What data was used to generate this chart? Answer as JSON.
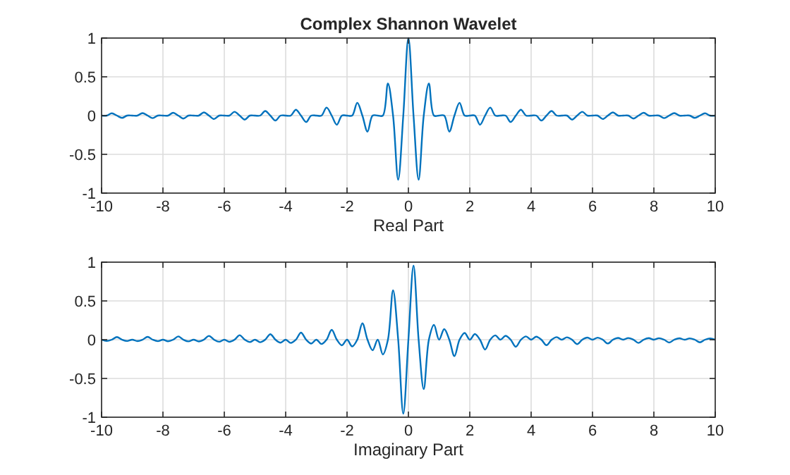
{
  "chart_data": [
    {
      "type": "line",
      "title": "Complex Shannon Wavelet",
      "xlabel": "Real Part",
      "xlim": [
        -10,
        10
      ],
      "ylim": [
        -1,
        1
      ],
      "xticks": [
        -10,
        -8,
        -6,
        -4,
        -2,
        0,
        2,
        4,
        6,
        8,
        10
      ],
      "yticks": [
        -1,
        -0.5,
        0,
        0.5,
        1
      ],
      "grid": true,
      "x": [
        -10,
        -9.833,
        -9.667,
        -9.5,
        -9.333,
        -9.167,
        -9,
        -8.833,
        -8.667,
        -8.5,
        -8.333,
        -8.167,
        -8,
        -7.833,
        -7.667,
        -7.5,
        -7.333,
        -7.167,
        -7,
        -6.833,
        -6.667,
        -6.5,
        -6.333,
        -6.167,
        -6,
        -5.833,
        -5.667,
        -5.5,
        -5.333,
        -5.167,
        -5,
        -4.833,
        -4.667,
        -4.5,
        -4.333,
        -4.167,
        -4,
        -3.833,
        -3.667,
        -3.5,
        -3.333,
        -3.167,
        -3,
        -2.833,
        -2.667,
        -2.5,
        -2.333,
        -2.167,
        -2,
        -1.833,
        -1.667,
        -1.5,
        -1.333,
        -1.167,
        -1,
        -0.833,
        -0.667,
        -0.5,
        -0.333,
        -0.167,
        0,
        0.167,
        0.333,
        0.5,
        0.667,
        0.833,
        1,
        1.167,
        1.333,
        1.5,
        1.667,
        1.833,
        2,
        2.167,
        2.333,
        2.5,
        2.667,
        2.833,
        3,
        3.167,
        3.333,
        3.5,
        3.667,
        3.833,
        4,
        4.167,
        4.333,
        4.5,
        4.667,
        4.833,
        5,
        5.167,
        5.333,
        5.5,
        5.667,
        5.833,
        6,
        6.167,
        6.333,
        6.5,
        6.667,
        6.833,
        7,
        7.167,
        7.333,
        7.5,
        7.667,
        7.833,
        8,
        8.167,
        8.333,
        8.5,
        8.667,
        8.833,
        9,
        9.167,
        9.333,
        9.5,
        9.667,
        9.833,
        10
      ],
      "series": [
        {
          "color": "#0072bd",
          "values": [
            0,
            0,
            0.029,
            0,
            -0.03,
            0,
            0,
            0,
            0.032,
            0,
            -0.033,
            0,
            0,
            0,
            0.036,
            0,
            -0.038,
            0,
            0,
            0,
            0.041,
            0,
            -0.044,
            0,
            0,
            0,
            0.049,
            0,
            -0.052,
            0,
            0,
            0,
            0.059,
            0,
            -0.064,
            0,
            0,
            0,
            0.075,
            0,
            -0.083,
            0,
            0,
            0,
            0.103,
            0,
            -0.118,
            0,
            0,
            0,
            0.165,
            0,
            -0.207,
            0,
            0,
            0,
            0.413,
            0,
            -0.827,
            0,
            1,
            0,
            -0.827,
            0,
            0.413,
            0,
            0,
            0,
            -0.207,
            0,
            0.165,
            0,
            0,
            0,
            -0.118,
            0,
            0.103,
            0,
            0,
            0,
            -0.083,
            0,
            0.075,
            0,
            0,
            0,
            -0.064,
            0,
            0.059,
            0,
            0,
            0,
            -0.052,
            0,
            0.049,
            0,
            0,
            0,
            -0.044,
            0,
            0.041,
            0,
            0,
            0,
            -0.038,
            0,
            0.036,
            0,
            0,
            0,
            -0.033,
            0,
            0.032,
            0,
            0,
            0,
            -0.03,
            0,
            0.029,
            0,
            0
          ]
        }
      ]
    },
    {
      "type": "line",
      "xlabel": "Imaginary Part",
      "xlim": [
        -10,
        10
      ],
      "ylim": [
        -1,
        1
      ],
      "xticks": [
        -10,
        -8,
        -6,
        -4,
        -2,
        0,
        2,
        4,
        6,
        8,
        10
      ],
      "yticks": [
        -1,
        -0.5,
        0,
        0.5,
        1
      ],
      "grid": true,
      "x": [
        -10,
        -9.833,
        -9.667,
        -9.5,
        -9.333,
        -9.167,
        -9,
        -8.833,
        -8.667,
        -8.5,
        -8.333,
        -8.167,
        -8,
        -7.833,
        -7.667,
        -7.5,
        -7.333,
        -7.167,
        -7,
        -6.833,
        -6.667,
        -6.5,
        -6.333,
        -6.167,
        -6,
        -5.833,
        -5.667,
        -5.5,
        -5.333,
        -5.167,
        -5,
        -4.833,
        -4.667,
        -4.5,
        -4.333,
        -4.167,
        -4,
        -3.833,
        -3.667,
        -3.5,
        -3.333,
        -3.167,
        -3,
        -2.833,
        -2.667,
        -2.5,
        -2.333,
        -2.167,
        -2,
        -1.833,
        -1.667,
        -1.5,
        -1.333,
        -1.167,
        -1,
        -0.833,
        -0.667,
        -0.5,
        -0.333,
        -0.167,
        0,
        0.167,
        0.333,
        0.5,
        0.667,
        0.833,
        1,
        1.167,
        1.333,
        1.5,
        1.667,
        1.833,
        2,
        2.167,
        2.333,
        2.5,
        2.667,
        2.833,
        3,
        3.167,
        3.333,
        3.5,
        3.667,
        3.833,
        4,
        4.167,
        4.333,
        4.5,
        4.667,
        4.833,
        5,
        5.167,
        5.333,
        5.5,
        5.667,
        5.833,
        6,
        6.167,
        6.333,
        6.5,
        6.667,
        6.833,
        7,
        7.167,
        7.333,
        7.5,
        7.667,
        7.833,
        8,
        8.167,
        8.333,
        8.5,
        8.667,
        8.833,
        9,
        9.167,
        9.333,
        9.5,
        9.667,
        9.833,
        10
      ],
      "series": [
        {
          "color": "#0072bd",
          "values": [
            0,
            -0.016,
            0,
            0.034,
            0,
            -0.017,
            0,
            -0.018,
            0,
            0.037,
            0,
            -0.019,
            0,
            -0.02,
            0,
            0.042,
            0,
            -0.022,
            0,
            -0.023,
            0,
            0.049,
            0,
            -0.026,
            0,
            -0.027,
            0,
            0.058,
            0,
            -0.031,
            0,
            -0.033,
            0,
            0.071,
            0,
            -0.038,
            0,
            -0.042,
            0,
            0.091,
            0,
            -0.05,
            0,
            -0.056,
            0,
            0.127,
            0,
            -0.073,
            0,
            -0.087,
            0,
            0.212,
            0,
            -0.136,
            0,
            -0.191,
            0,
            0.637,
            0,
            -0.955,
            0,
            0.955,
            0,
            -0.637,
            0,
            0.191,
            0,
            0.136,
            0,
            -0.212,
            0,
            0.087,
            0,
            0.073,
            0,
            -0.127,
            0,
            0.056,
            0,
            0.05,
            0,
            -0.091,
            0,
            0.042,
            0,
            0.038,
            0,
            -0.071,
            0,
            0.033,
            0,
            0.031,
            0,
            -0.058,
            0,
            0.027,
            0,
            0.026,
            0,
            -0.049,
            0,
            0.023,
            0,
            0.022,
            0,
            -0.042,
            0,
            0.02,
            0,
            0.019,
            0,
            -0.037,
            0,
            0.018,
            0,
            0.017,
            0,
            -0.034,
            0,
            0.016,
            0
          ]
        }
      ]
    }
  ]
}
